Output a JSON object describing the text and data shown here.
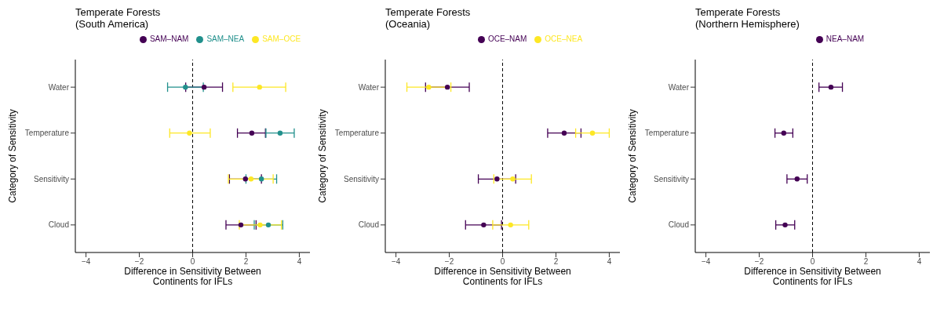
{
  "chart_data": [
    {
      "type": "scatter",
      "orientation": "horizontal",
      "title": "Temperate Forests\n(South America)",
      "xlabel": "Difference in Sensitivity Between\nContinents for IFLs",
      "ylabel": "Category of Sensitivity",
      "categories": [
        "Water",
        "Temperature",
        "Sensitivity",
        "Cloud"
      ],
      "xlim": [
        -4.4,
        4.4
      ],
      "xticks": [
        -4,
        -2,
        0,
        2,
        4
      ],
      "legend": "top",
      "marker": "circle",
      "ref_lines": [
        {
          "axis": "x",
          "value": 0,
          "line_style": "dashed",
          "color": "#000000"
        }
      ],
      "series": [
        {
          "name": "SAM–NAM",
          "color": "#440154",
          "values": [
            0.43,
            2.22,
            1.98,
            1.81
          ],
          "errors": [
            [
              -0.26,
              1.12
            ],
            [
              1.68,
              2.73
            ],
            [
              1.38,
              2.58
            ],
            [
              1.25,
              2.38
            ]
          ]
        },
        {
          "name": "SAM–NEA",
          "color": "#21908c",
          "values": [
            -0.27,
            3.28,
            2.58,
            2.84
          ],
          "errors": [
            [
              -0.94,
              0.4
            ],
            [
              2.75,
              3.81
            ],
            [
              2.0,
              3.15
            ],
            [
              2.31,
              3.38
            ]
          ]
        },
        {
          "name": "SAM–OCE",
          "color": "#fde725",
          "values": [
            2.51,
            -0.12,
            2.19,
            2.53
          ],
          "errors": [
            [
              1.51,
              3.49
            ],
            [
              -0.86,
              0.66
            ],
            [
              1.34,
              3.02
            ],
            [
              1.75,
              3.33
            ]
          ]
        }
      ]
    },
    {
      "type": "scatter",
      "orientation": "horizontal",
      "title": "Temperate Forests\n(Oceania)",
      "xlabel": "Difference in Sensitivity Between\nContinents for IFLs",
      "ylabel": "Category of Sensitivity",
      "categories": [
        "Water",
        "Temperature",
        "Sensitivity",
        "Cloud"
      ],
      "xlim": [
        -4.4,
        4.4
      ],
      "xticks": [
        -4,
        -2,
        0,
        2,
        4
      ],
      "legend": "top",
      "marker": "circle",
      "ref_lines": [
        {
          "axis": "x",
          "value": 0,
          "line_style": "dashed",
          "color": "#000000"
        }
      ],
      "series": [
        {
          "name": "OCE–NAM",
          "color": "#440154",
          "values": [
            -2.07,
            2.31,
            -0.21,
            -0.71
          ],
          "errors": [
            [
              -2.89,
              -1.25
            ],
            [
              1.69,
              2.94
            ],
            [
              -0.91,
              0.49
            ],
            [
              -1.39,
              -0.04
            ]
          ]
        },
        {
          "name": "OCE–NEA",
          "color": "#fde725",
          "values": [
            -2.77,
            3.37,
            0.38,
            0.3
          ],
          "errors": [
            [
              -3.59,
              -1.94
            ],
            [
              2.74,
              4.0
            ],
            [
              -0.33,
              1.08
            ],
            [
              -0.37,
              0.98
            ]
          ]
        }
      ]
    },
    {
      "type": "scatter",
      "orientation": "horizontal",
      "title": "Temperate Forests\n(Northern Hemisphere)",
      "xlabel": "Difference in Sensitivity Between\nContinents for IFLs",
      "ylabel": "Category of Sensitivity",
      "categories": [
        "Water",
        "Temperature",
        "Sensitivity",
        "Cloud"
      ],
      "xlim": [
        -4.4,
        4.4
      ],
      "xticks": [
        -4,
        -2,
        0,
        2,
        4
      ],
      "legend": "top",
      "marker": "circle",
      "ref_lines": [
        {
          "axis": "x",
          "value": 0,
          "line_style": "dashed",
          "color": "#000000"
        }
      ],
      "series": [
        {
          "name": "NEA–NAM",
          "color": "#440154",
          "values": [
            0.69,
            -1.08,
            -0.58,
            -1.03
          ],
          "errors": [
            [
              0.24,
              1.12
            ],
            [
              -1.41,
              -0.74
            ],
            [
              -0.96,
              -0.2
            ],
            [
              -1.38,
              -0.67
            ]
          ]
        }
      ]
    }
  ]
}
